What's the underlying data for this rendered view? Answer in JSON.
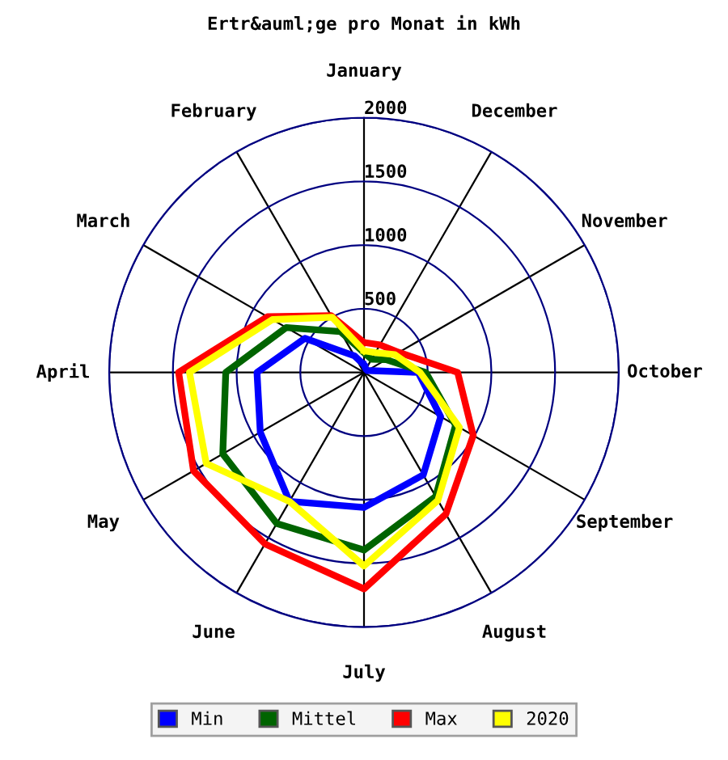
{
  "chart_data": {
    "type": "radar",
    "title": "Ertr&auml;ge pro Monat in kWh",
    "categories": [
      "January",
      "December",
      "November",
      "October",
      "September",
      "August",
      "July",
      "June",
      "May",
      "April",
      "March",
      "February"
    ],
    "series": [
      {
        "name": "Min",
        "color": "#0000ff",
        "values": [
          60,
          30,
          30,
          425,
          695,
          930,
          1060,
          1170,
          940,
          840,
          535,
          150
        ]
      },
      {
        "name": "Mittel",
        "color": "#006400",
        "values": [
          155,
          120,
          200,
          485,
          830,
          1125,
          1395,
          1370,
          1280,
          1085,
          705,
          370
        ]
      },
      {
        "name": "Max",
        "color": "#ff0000",
        "values": [
          235,
          250,
          315,
          735,
          990,
          1285,
          1700,
          1555,
          1545,
          1455,
          875,
          515
        ]
      },
      {
        "name": "2020",
        "color": "#ffff00",
        "values": [
          170,
          180,
          280,
          440,
          865,
          1160,
          1520,
          1170,
          1430,
          1370,
          830,
          500
        ]
      }
    ],
    "ylim": [
      0,
      2000
    ],
    "yticks": [
      500,
      1000,
      1500,
      2000
    ],
    "grid": true,
    "legend": "bottom"
  }
}
